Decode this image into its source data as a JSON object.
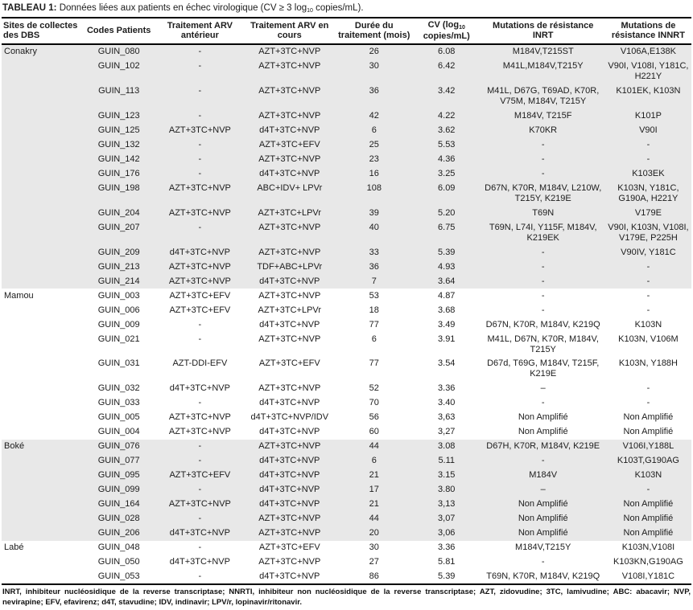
{
  "title": {
    "prefix": "TABLEAU 1:",
    "main": " Données liées aux patients en échec virologique (CV ≥ 3 log",
    "sub": "10",
    "suffix": " copies/mL)."
  },
  "headers": {
    "site": "Sites de collectes des DBS",
    "codes": "Codes Patients",
    "prev": "Traitement ARV antérieur",
    "current": "Traitement ARV en cours",
    "duration": "Durée du traitement (mois)",
    "cv_pre": "CV (log",
    "cv_sub": "10",
    "cv_post": " copies/mL)",
    "inrt": "Mutations de résistance INRT",
    "innrt": "Mutations de résistance INNRT"
  },
  "groups": [
    {
      "site": "Conakry",
      "shaded": true,
      "rows": [
        {
          "code": "GUIN_080",
          "prev": "-",
          "current": "AZT+3TC+NVP",
          "duration": "26",
          "cv": "6.08",
          "inrt": "M184V,T215ST",
          "innrt": "V106A,E138K"
        },
        {
          "code": "GUIN_102",
          "prev": "-",
          "current": "AZT+3TC+NVP",
          "duration": "30",
          "cv": "6.42",
          "inrt": "M41L,M184V,T215Y",
          "innrt": "V90I, V108I, Y181C, H221Y"
        },
        {
          "code": "GUIN_113",
          "prev": "-",
          "current": "AZT+3TC+NVP",
          "duration": "36",
          "cv": "3.42",
          "inrt": "M41L, D67G, T69AD, K70R, V75M, M184V, T215Y",
          "innrt": "K101EK, K103N"
        },
        {
          "code": "GUIN_123",
          "prev": "-",
          "current": "AZT+3TC+NVP",
          "duration": "42",
          "cv": "4.22",
          "inrt": "M184V, T215F",
          "innrt": "K101P"
        },
        {
          "code": "GUIN_125",
          "prev": "AZT+3TC+NVP",
          "current": "d4T+3TC+NVP",
          "duration": "6",
          "cv": "3.62",
          "inrt": "K70KR",
          "innrt": "V90I"
        },
        {
          "code": "GUIN_132",
          "prev": "-",
          "current": "AZT+3TC+EFV",
          "duration": "25",
          "cv": "5.53",
          "inrt": "-",
          "innrt": "-"
        },
        {
          "code": "GUIN_142",
          "prev": "-",
          "current": "AZT+3TC+NVP",
          "duration": "23",
          "cv": "4.36",
          "inrt": "-",
          "innrt": "-"
        },
        {
          "code": "GUIN_176",
          "prev": "-",
          "current": "d4T+3TC+NVP",
          "duration": "16",
          "cv": "3.25",
          "inrt": "-",
          "innrt": "K103EK"
        },
        {
          "code": "GUIN_198",
          "prev": "AZT+3TC+NVP",
          "current": "ABC+IDV+ LPVr",
          "duration": "108",
          "cv": "6.09",
          "inrt": "D67N, K70R, M184V, L210W, T215Y, K219E",
          "innrt": "K103N, Y181C, G190A, H221Y"
        },
        {
          "code": "GUIN_204",
          "prev": "AZT+3TC+NVP",
          "current": "AZT+3TC+LPVr",
          "duration": "39",
          "cv": "5.20",
          "inrt": "T69N",
          "innrt": "V179E"
        },
        {
          "code": "GUIN_207",
          "prev": "-",
          "current": "AZT+3TC+NVP",
          "duration": "40",
          "cv": "6.75",
          "inrt": "T69N, L74I, Y115F, M184V, K219EK",
          "innrt": "V90I, K103N, V108I, V179E, P225H"
        },
        {
          "code": "GUIN_209",
          "prev": "d4T+3TC+NVP",
          "current": "AZT+3TC+NVP",
          "duration": "33",
          "cv": "5.39",
          "inrt": "-",
          "innrt": "V90IV, Y181C"
        },
        {
          "code": "GUIN_213",
          "prev": "AZT+3TC+NVP",
          "current": "TDF+ABC+LPVr",
          "duration": "36",
          "cv": "4.93",
          "inrt": "-",
          "innrt": "-"
        },
        {
          "code": "GUIN_214",
          "prev": "AZT+3TC+NVP",
          "current": "d4T+3TC+NVP",
          "duration": "7",
          "cv": "3.64",
          "inrt": "-",
          "innrt": "-"
        }
      ]
    },
    {
      "site": "Mamou",
      "shaded": false,
      "rows": [
        {
          "code": "GUIN_003",
          "prev": "AZT+3TC+EFV",
          "current": "AZT+3TC+NVP",
          "duration": "53",
          "cv": "4.87",
          "inrt": "-",
          "innrt": "-"
        },
        {
          "code": "GUIN_006",
          "prev": "AZT+3TC+EFV",
          "current": "AZT+3TC+LPVr",
          "duration": "18",
          "cv": "3.68",
          "inrt": "-",
          "innrt": "-"
        },
        {
          "code": "GUIN_009",
          "prev": "-",
          "current": "d4T+3TC+NVP",
          "duration": "77",
          "cv": "3.49",
          "inrt": "D67N, K70R, M184V, K219Q",
          "innrt": "K103N"
        },
        {
          "code": "GUIN_021",
          "prev": "-",
          "current": "AZT+3TC+NVP",
          "duration": "6",
          "cv": "3.91",
          "inrt": "M41L, D67N, K70R, M184V, T215Y",
          "innrt": "K103N, V106M"
        },
        {
          "code": "GUIN_031",
          "prev": "AZT-DDI-EFV",
          "current": "AZT+3TC+EFV",
          "duration": "77",
          "cv": "3.54",
          "inrt": "D67d, T69G, M184V, T215F, K219E",
          "innrt": "K103N, Y188H"
        },
        {
          "code": "GUIN_032",
          "prev": "d4T+3TC+NVP",
          "current": "AZT+3TC+NVP",
          "duration": "52",
          "cv": "3.36",
          "inrt": "–",
          "innrt": "-"
        },
        {
          "code": "GUIN_033",
          "prev": "-",
          "current": "d4T+3TC+NVP",
          "duration": "70",
          "cv": "3.40",
          "inrt": "-",
          "innrt": "-"
        },
        {
          "code": "GUIN_005",
          "prev": "AZT+3TC+NVP",
          "current": "d4T+3TC+NVP/IDV",
          "duration": "56",
          "cv": "3,63",
          "inrt": "Non Amplifié",
          "innrt": "Non Amplifié"
        },
        {
          "code": "GUIN_004",
          "prev": "AZT+3TC+NVP",
          "current": "d4T+3TC+NVP",
          "duration": "60",
          "cv": "3,27",
          "inrt": "Non Amplifié",
          "innrt": "Non Amplifié"
        }
      ]
    },
    {
      "site": "Boké",
      "shaded": true,
      "rows": [
        {
          "code": "GUIN_076",
          "prev": "-",
          "current": "AZT+3TC+NVP",
          "duration": "44",
          "cv": "3.08",
          "inrt": "D67H, K70R, M184V, K219E",
          "innrt": "V106I,Y188L"
        },
        {
          "code": "GUIN_077",
          "prev": "-",
          "current": "d4T+3TC+NVP",
          "duration": "6",
          "cv": "5.11",
          "inrt": "-",
          "innrt": "K103T,G190AG"
        },
        {
          "code": "GUIN_095",
          "prev": "AZT+3TC+EFV",
          "current": "d4T+3TC+NVP",
          "duration": "21",
          "cv": "3.15",
          "inrt": "M184V",
          "innrt": "K103N"
        },
        {
          "code": "GUIN_099",
          "prev": "-",
          "current": "d4T+3TC+NVP",
          "duration": "17",
          "cv": "3.80",
          "inrt": "–",
          "innrt": "-"
        },
        {
          "code": "GUIN_164",
          "prev": "AZT+3TC+NVP",
          "current": "d4T+3TC+NVP",
          "duration": "21",
          "cv": "3,13",
          "inrt": "Non Amplifié",
          "innrt": "Non Amplifié"
        },
        {
          "code": "GUIN_028",
          "prev": "-",
          "current": "AZT+3TC+NVP",
          "duration": "44",
          "cv": "3,07",
          "inrt": "Non Amplifié",
          "innrt": "Non Amplifié"
        },
        {
          "code": "GUIN_206",
          "prev": "d4T+3TC+NVP",
          "current": "AZT+3TC+NVP",
          "duration": "20",
          "cv": "3,06",
          "inrt": "Non Amplifié",
          "innrt": "Non Amplifié"
        }
      ]
    },
    {
      "site": "Labé",
      "shaded": false,
      "rows": [
        {
          "code": "GUIN_048",
          "prev": "-",
          "current": "AZT+3TC+EFV",
          "duration": "30",
          "cv": "3.36",
          "inrt": "M184V,T215Y",
          "innrt": "K103N,V108I"
        },
        {
          "code": "GUIN_050",
          "prev": "d4T+3TC+NVP",
          "current": "AZT+3TC+NVP",
          "duration": "27",
          "cv": "5.81",
          "inrt": "-",
          "innrt": "K103KN,G190AG"
        },
        {
          "code": "GUIN_053",
          "prev": "-",
          "current": "d4T+3TC+NVP",
          "duration": "86",
          "cv": "5.39",
          "inrt": "T69N, K70R, M184V, K219Q",
          "innrt": "V108I,Y181C"
        }
      ]
    }
  ],
  "footnote": "INRT, inhibiteur nucléosidique de la reverse transcriptase; NNRTI, inhibiteur non nucléosidique de la reverse transcriptase; AZT, zidovudine; 3TC, lamivudine; ABC: abacavir; NVP, nevirapine; EFV, efavirenz; d4T, stavudine; IDV, indinavir; LPV/r, lopinavir/ritonavir."
}
